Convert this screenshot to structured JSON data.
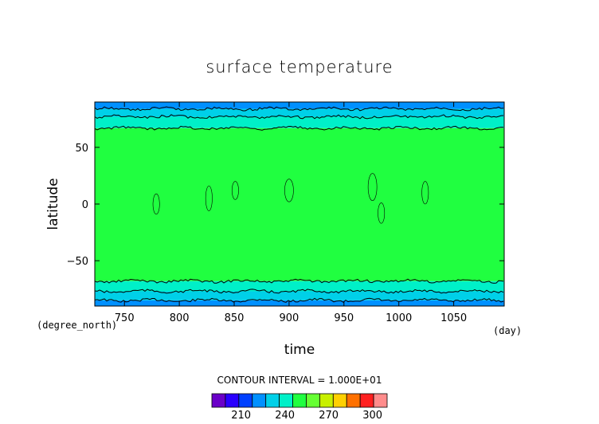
{
  "chart_data": {
    "type": "heatmap",
    "title": "surface temperature",
    "xlabel": "time",
    "ylabel": "latitude",
    "x_unit": "(day)",
    "y_unit": "(degree_north)",
    "xlim": [
      723,
      1096
    ],
    "ylim": [
      -90,
      90
    ],
    "x_ticks": [
      750,
      800,
      850,
      900,
      950,
      1000,
      1050
    ],
    "y_ticks": [
      -50,
      0,
      50
    ],
    "contour_interval_text": "CONTOUR INTERVAL = 1.000E+01",
    "colorbar": {
      "levels": [
        190,
        200,
        210,
        220,
        230,
        240,
        250,
        260,
        270,
        280,
        290,
        300,
        310
      ],
      "colors": [
        "#6a00c8",
        "#2a00ff",
        "#0040ff",
        "#0090ff",
        "#00d0e8",
        "#00f0c8",
        "#20ff40",
        "#66ff33",
        "#c8f000",
        "#ffd000",
        "#ff7000",
        "#ff2020",
        "#ff8c8c"
      ],
      "tick_labels": [
        210,
        240,
        270,
        300
      ]
    },
    "bands": [
      {
        "lat_from": -90,
        "lat_to": -85,
        "value": 215,
        "color": "#0090ff"
      },
      {
        "lat_from": -85,
        "lat_to": -77,
        "value": 225,
        "color": "#00d0e8"
      },
      {
        "lat_from": -77,
        "lat_to": -68,
        "value": 235,
        "color": "#00f0c8"
      },
      {
        "lat_from": -68,
        "lat_to": 67,
        "value": 245,
        "color": "#20ff40"
      },
      {
        "lat_from": 67,
        "lat_to": 77,
        "value": 235,
        "color": "#00f0c8"
      },
      {
        "lat_from": 77,
        "lat_to": 84,
        "value": 225,
        "color": "#00d0e8"
      },
      {
        "lat_from": 84,
        "lat_to": 90,
        "value": 215,
        "color": "#0090ff"
      }
    ],
    "warm_patches": [
      {
        "t": 779,
        "lat": 0,
        "dt": 3,
        "dlat": 9,
        "value": 255
      },
      {
        "t": 827,
        "lat": 5,
        "dt": 3,
        "dlat": 11,
        "value": 255
      },
      {
        "t": 851,
        "lat": 12,
        "dt": 3,
        "dlat": 8,
        "value": 255
      },
      {
        "t": 900,
        "lat": 12,
        "dt": 4,
        "dlat": 10,
        "value": 255
      },
      {
        "t": 976,
        "lat": 15,
        "dt": 4,
        "dlat": 12,
        "value": 255
      },
      {
        "t": 1024,
        "lat": 10,
        "dt": 3,
        "dlat": 10,
        "value": 255
      },
      {
        "t": 984,
        "lat": -8,
        "dt": 3,
        "dlat": 9,
        "value": 255
      }
    ]
  }
}
